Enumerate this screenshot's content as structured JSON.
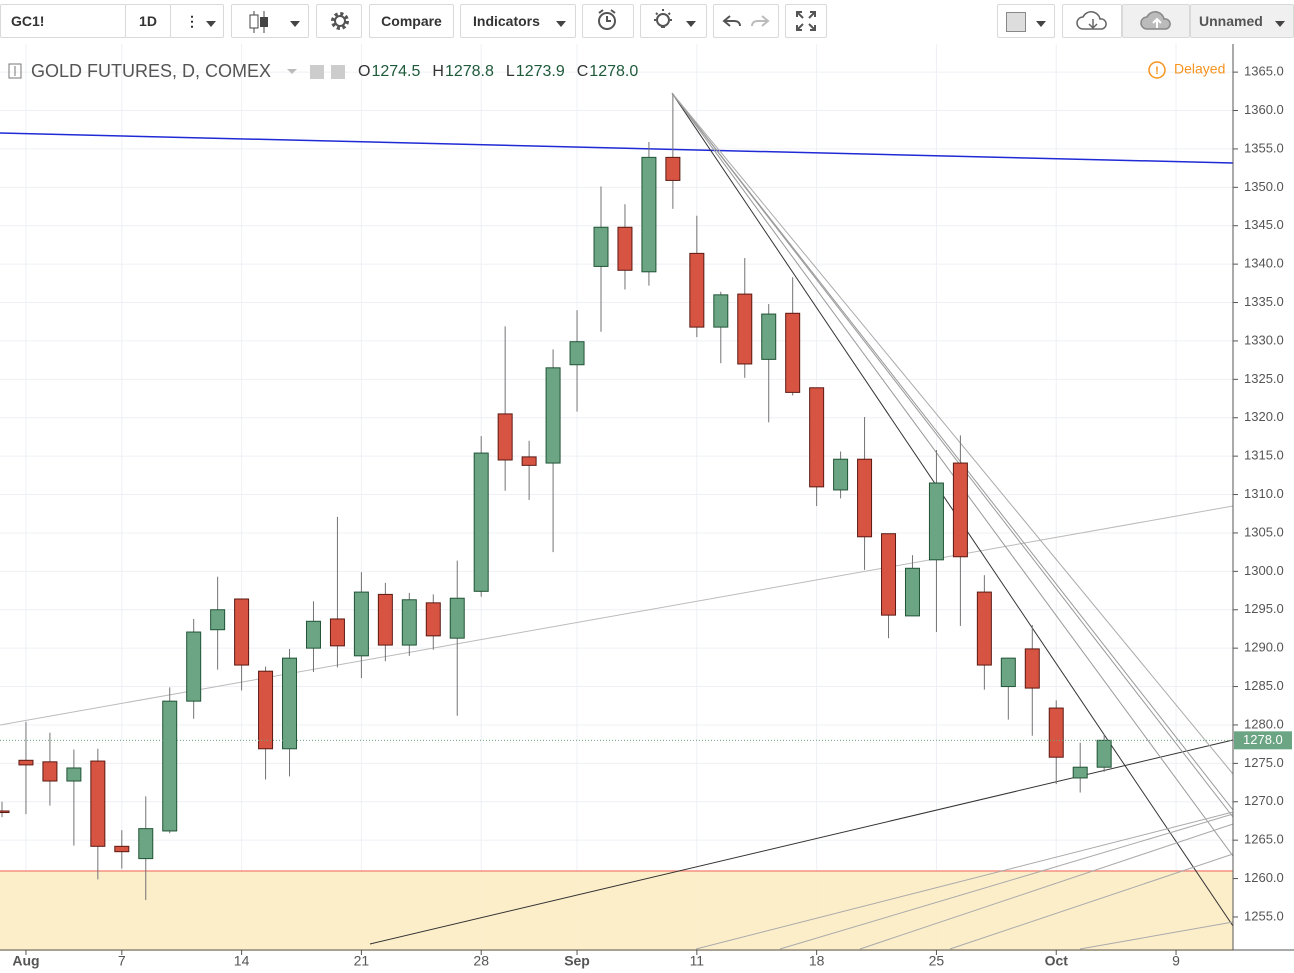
{
  "toolbar": {
    "symbol": "GC1!",
    "interval": "1D",
    "compare": "Compare",
    "indicators": "Indicators",
    "layout": "Unnamed"
  },
  "chart_data": {
    "type": "candlestick",
    "title": "GOLD FUTURES, D, COMEX",
    "status": "Delayed",
    "legend": [
      {
        "key": "O",
        "value": 1274.5
      },
      {
        "key": "H",
        "value": 1278.8
      },
      {
        "key": "L",
        "value": 1273.9
      },
      {
        "key": "C",
        "value": {
          "value": 1278,
          "label": "1278.0"
        }
      }
    ],
    "last_price": {
      "value": 1278,
      "label": "1278.0"
    },
    "up_color": "#6ba583",
    "down_color": "#d75442",
    "categories": [
      null,
      "Aug",
      null,
      null,
      null,
      "7",
      null,
      null,
      null,
      null,
      "14",
      null,
      null,
      null,
      null,
      "21",
      null,
      null,
      null,
      null,
      "28",
      null,
      null,
      null,
      "Sep",
      null,
      null,
      null,
      null,
      "11",
      null,
      null,
      null,
      null,
      "18",
      null,
      null,
      null,
      null,
      "25",
      null,
      null,
      null,
      null,
      "Oct",
      null,
      null,
      null,
      null,
      "9",
      null,
      null
    ],
    "open": [
      1268.8,
      1275.4,
      1275.2,
      1272.7,
      1275.3,
      1264.2,
      1262.6,
      1266.2,
      1283.1,
      1292.4,
      1296.4,
      1287.0,
      1276.9,
      1290.0,
      1293.8,
      1289.0,
      1297.0,
      1290.4,
      1295.9,
      1291.3,
      1297.4,
      1320.5,
      1314.9,
      1314.1,
      1326.9,
      1339.7,
      1344.8,
      1339.0,
      1353.9,
      1341.4,
      1331.8,
      1336.1,
      1327.6,
      1333.6,
      1323.9,
      1310.6,
      1314.6,
      1304.9,
      1294.2,
      1301.5,
      1314.1,
      1297.3,
      1285.0,
      1289.9,
      1282.2,
      1273.1,
      1274.5,
      null,
      null,
      null,
      null,
      null
    ],
    "high": [
      1270.0,
      1280.4,
      1279.0,
      1276.8,
      1276.9,
      1266.3,
      1270.7,
      1284.9,
      1293.8,
      1299.3,
      1296.4,
      1287.6,
      1289.9,
      1296.1,
      1307.1,
      1299.9,
      1298.5,
      1297.2,
      1297.0,
      1301.4,
      1317.6,
      1331.9,
      1317.0,
      1328.9,
      1334.0,
      1350.1,
      1347.8,
      1355.9,
      1362.2,
      1346.3,
      1336.4,
      1340.8,
      1334.8,
      1338.3,
      1323.9,
      1315.6,
      1320.1,
      1304.9,
      1302.1,
      1315.8,
      1317.7,
      1299.5,
      1288.7,
      1293.0,
      1283.2,
      1277.7,
      1278.8,
      null,
      null,
      null,
      null,
      null
    ],
    "low": [
      1268.0,
      1268.4,
      1269.5,
      1264.3,
      1259.9,
      1261.3,
      1257.2,
      1265.9,
      1280.8,
      1287.2,
      1284.5,
      1272.9,
      1273.3,
      1286.9,
      1287.5,
      1286.1,
      1288.3,
      1289.0,
      1289.8,
      1281.2,
      1296.7,
      1310.5,
      1309.3,
      1302.5,
      1320.8,
      1331.2,
      1336.7,
      1337.2,
      1347.2,
      1330.5,
      1327.1,
      1325.2,
      1319.4,
      1322.9,
      1308.5,
      1309.5,
      1300.2,
      1291.3,
      1294.2,
      1292.1,
      1292.9,
      1284.6,
      1280.7,
      1278.6,
      1272.3,
      1271.2,
      1273.9,
      null,
      null,
      null,
      null,
      null
    ],
    "close": [
      1268.6,
      1274.8,
      1272.7,
      1274.4,
      1264.2,
      1263.5,
      1266.5,
      1283.1,
      1292.1,
      1295.0,
      1287.8,
      1276.9,
      1288.7,
      1293.5,
      1290.3,
      1297.3,
      1290.4,
      1296.3,
      1291.6,
      1296.5,
      1315.4,
      1314.5,
      1313.8,
      1326.5,
      1329.9,
      1344.8,
      1339.2,
      1353.9,
      1350.9,
      1331.8,
      1336.0,
      1327.0,
      1333.5,
      1323.3,
      1311.0,
      1314.6,
      1304.5,
      1294.3,
      1300.4,
      1311.5,
      1301.9,
      1287.8,
      1288.7,
      1284.8,
      1275.8,
      1274.5,
      1278.0,
      null,
      null,
      null,
      null,
      null
    ],
    "ylim": [
      1250.7,
      1368.4
    ],
    "yticks": [
      {
        "value": 1255,
        "label": "1255.0"
      },
      {
        "value": 1260,
        "label": "1260.0"
      },
      {
        "value": 1265,
        "label": "1265.0"
      },
      {
        "value": 1270,
        "label": "1270.0"
      },
      {
        "value": 1275,
        "label": "1275.0"
      },
      {
        "value": 1280,
        "label": "1280.0"
      },
      {
        "value": 1285,
        "label": "1285.0"
      },
      {
        "value": 1290,
        "label": "1290.0"
      },
      {
        "value": 1295,
        "label": "1295.0"
      },
      {
        "value": 1300,
        "label": "1300.0"
      },
      {
        "value": 1305,
        "label": "1305.0"
      },
      {
        "value": 1310,
        "label": "1310.0"
      },
      {
        "value": 1315,
        "label": "1315.0"
      },
      {
        "value": 1320,
        "label": "1320.0"
      },
      {
        "value": 1325,
        "label": "1325.0"
      },
      {
        "value": 1330,
        "label": "1330.0"
      },
      {
        "value": 1335,
        "label": "1335.0"
      },
      {
        "value": 1340,
        "label": "1340.0"
      },
      {
        "value": 1345,
        "label": "1345.0"
      },
      {
        "value": 1350,
        "label": "1350.0"
      },
      {
        "value": 1355,
        "label": "1355.0"
      },
      {
        "value": 1360,
        "label": "1360.0"
      },
      {
        "value": 1365,
        "label": "1365.0"
      }
    ],
    "grid": true
  }
}
